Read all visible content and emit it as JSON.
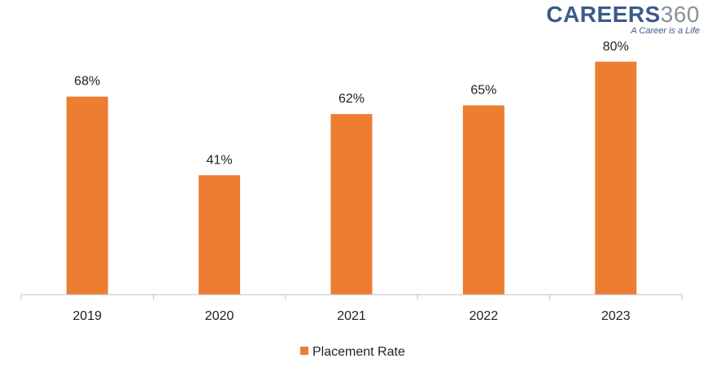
{
  "logo": {
    "word": "CAREERS",
    "number": "360",
    "tagline": "A Career is a Life",
    "color_word": "#3a5a8a",
    "color_number": "#8a8f99"
  },
  "chart_data": {
    "type": "bar",
    "categories": [
      "2019",
      "2020",
      "2021",
      "2022",
      "2023"
    ],
    "series": [
      {
        "name": "Placement Rate",
        "values": [
          68,
          41,
          62,
          65,
          80
        ],
        "labels": [
          "68%",
          "41%",
          "62%",
          "65%",
          "80%"
        ],
        "color": "#ed7d31"
      }
    ],
    "ylim": [
      0,
      90
    ],
    "grid": false,
    "legend": "bottom",
    "xlabel": "",
    "ylabel": ""
  }
}
